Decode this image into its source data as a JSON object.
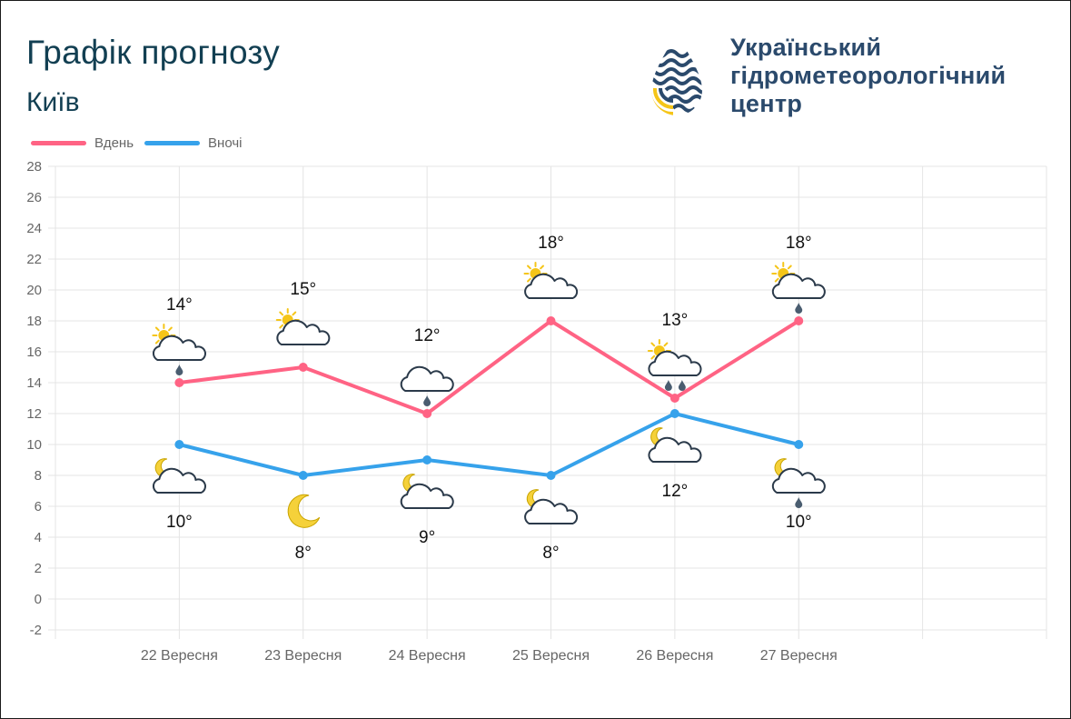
{
  "header": {
    "title": "Графік прогнозу",
    "city": "Київ"
  },
  "org": {
    "logo_icon": "water-drop-logo-icon",
    "name_lines": [
      "Український",
      "гідрометеорологічний",
      "центр"
    ]
  },
  "colors": {
    "day": "#ff6384",
    "night": "#36a2eb",
    "title": "#123f52",
    "org_text": "#2b4a6c",
    "logo_blue": "#2b4a6c",
    "logo_yellow": "#f5c518",
    "icon_outline": "#2b3a4a",
    "sun": "#f5c518",
    "rain": "#4a5d70"
  },
  "legend": [
    {
      "label": "Вдень",
      "series": "day"
    },
    {
      "label": "Вночі",
      "series": "night"
    }
  ],
  "chart_data": {
    "type": "line",
    "categories": [
      "22 Вересня",
      "23 Вересня",
      "24 Вересня",
      "25 Вересня",
      "26 Вересня",
      "27 Вересня"
    ],
    "ylim": [
      -2,
      28
    ],
    "yticks": [
      -2,
      0,
      2,
      4,
      6,
      8,
      10,
      12,
      14,
      16,
      18,
      20,
      22,
      24,
      26,
      28
    ],
    "x_slots": 8,
    "grid": true,
    "legend_position": "top-left",
    "series": [
      {
        "name": "Вдень",
        "key": "day",
        "values": [
          14,
          15,
          12,
          18,
          13,
          18
        ],
        "labels": [
          "14°",
          "15°",
          "12°",
          "18°",
          "13°",
          "18°"
        ],
        "icons": [
          "sun-cloud-light-rain-icon",
          "sun-cloud-icon",
          "cloud-light-rain-icon",
          "sun-cloud-icon",
          "sun-cloud-rain-icon",
          "sun-cloud-light-rain-icon"
        ]
      },
      {
        "name": "Вночі",
        "key": "night",
        "values": [
          10,
          8,
          9,
          8,
          12,
          10
        ],
        "labels": [
          "10°",
          "8°",
          "9°",
          "8°",
          "12°",
          "10°"
        ],
        "icons": [
          "moon-cloud-icon",
          "moon-icon",
          "moon-cloud-icon",
          "moon-cloud-icon",
          "moon-cloud-icon",
          "moon-cloud-light-rain-icon"
        ]
      }
    ]
  }
}
